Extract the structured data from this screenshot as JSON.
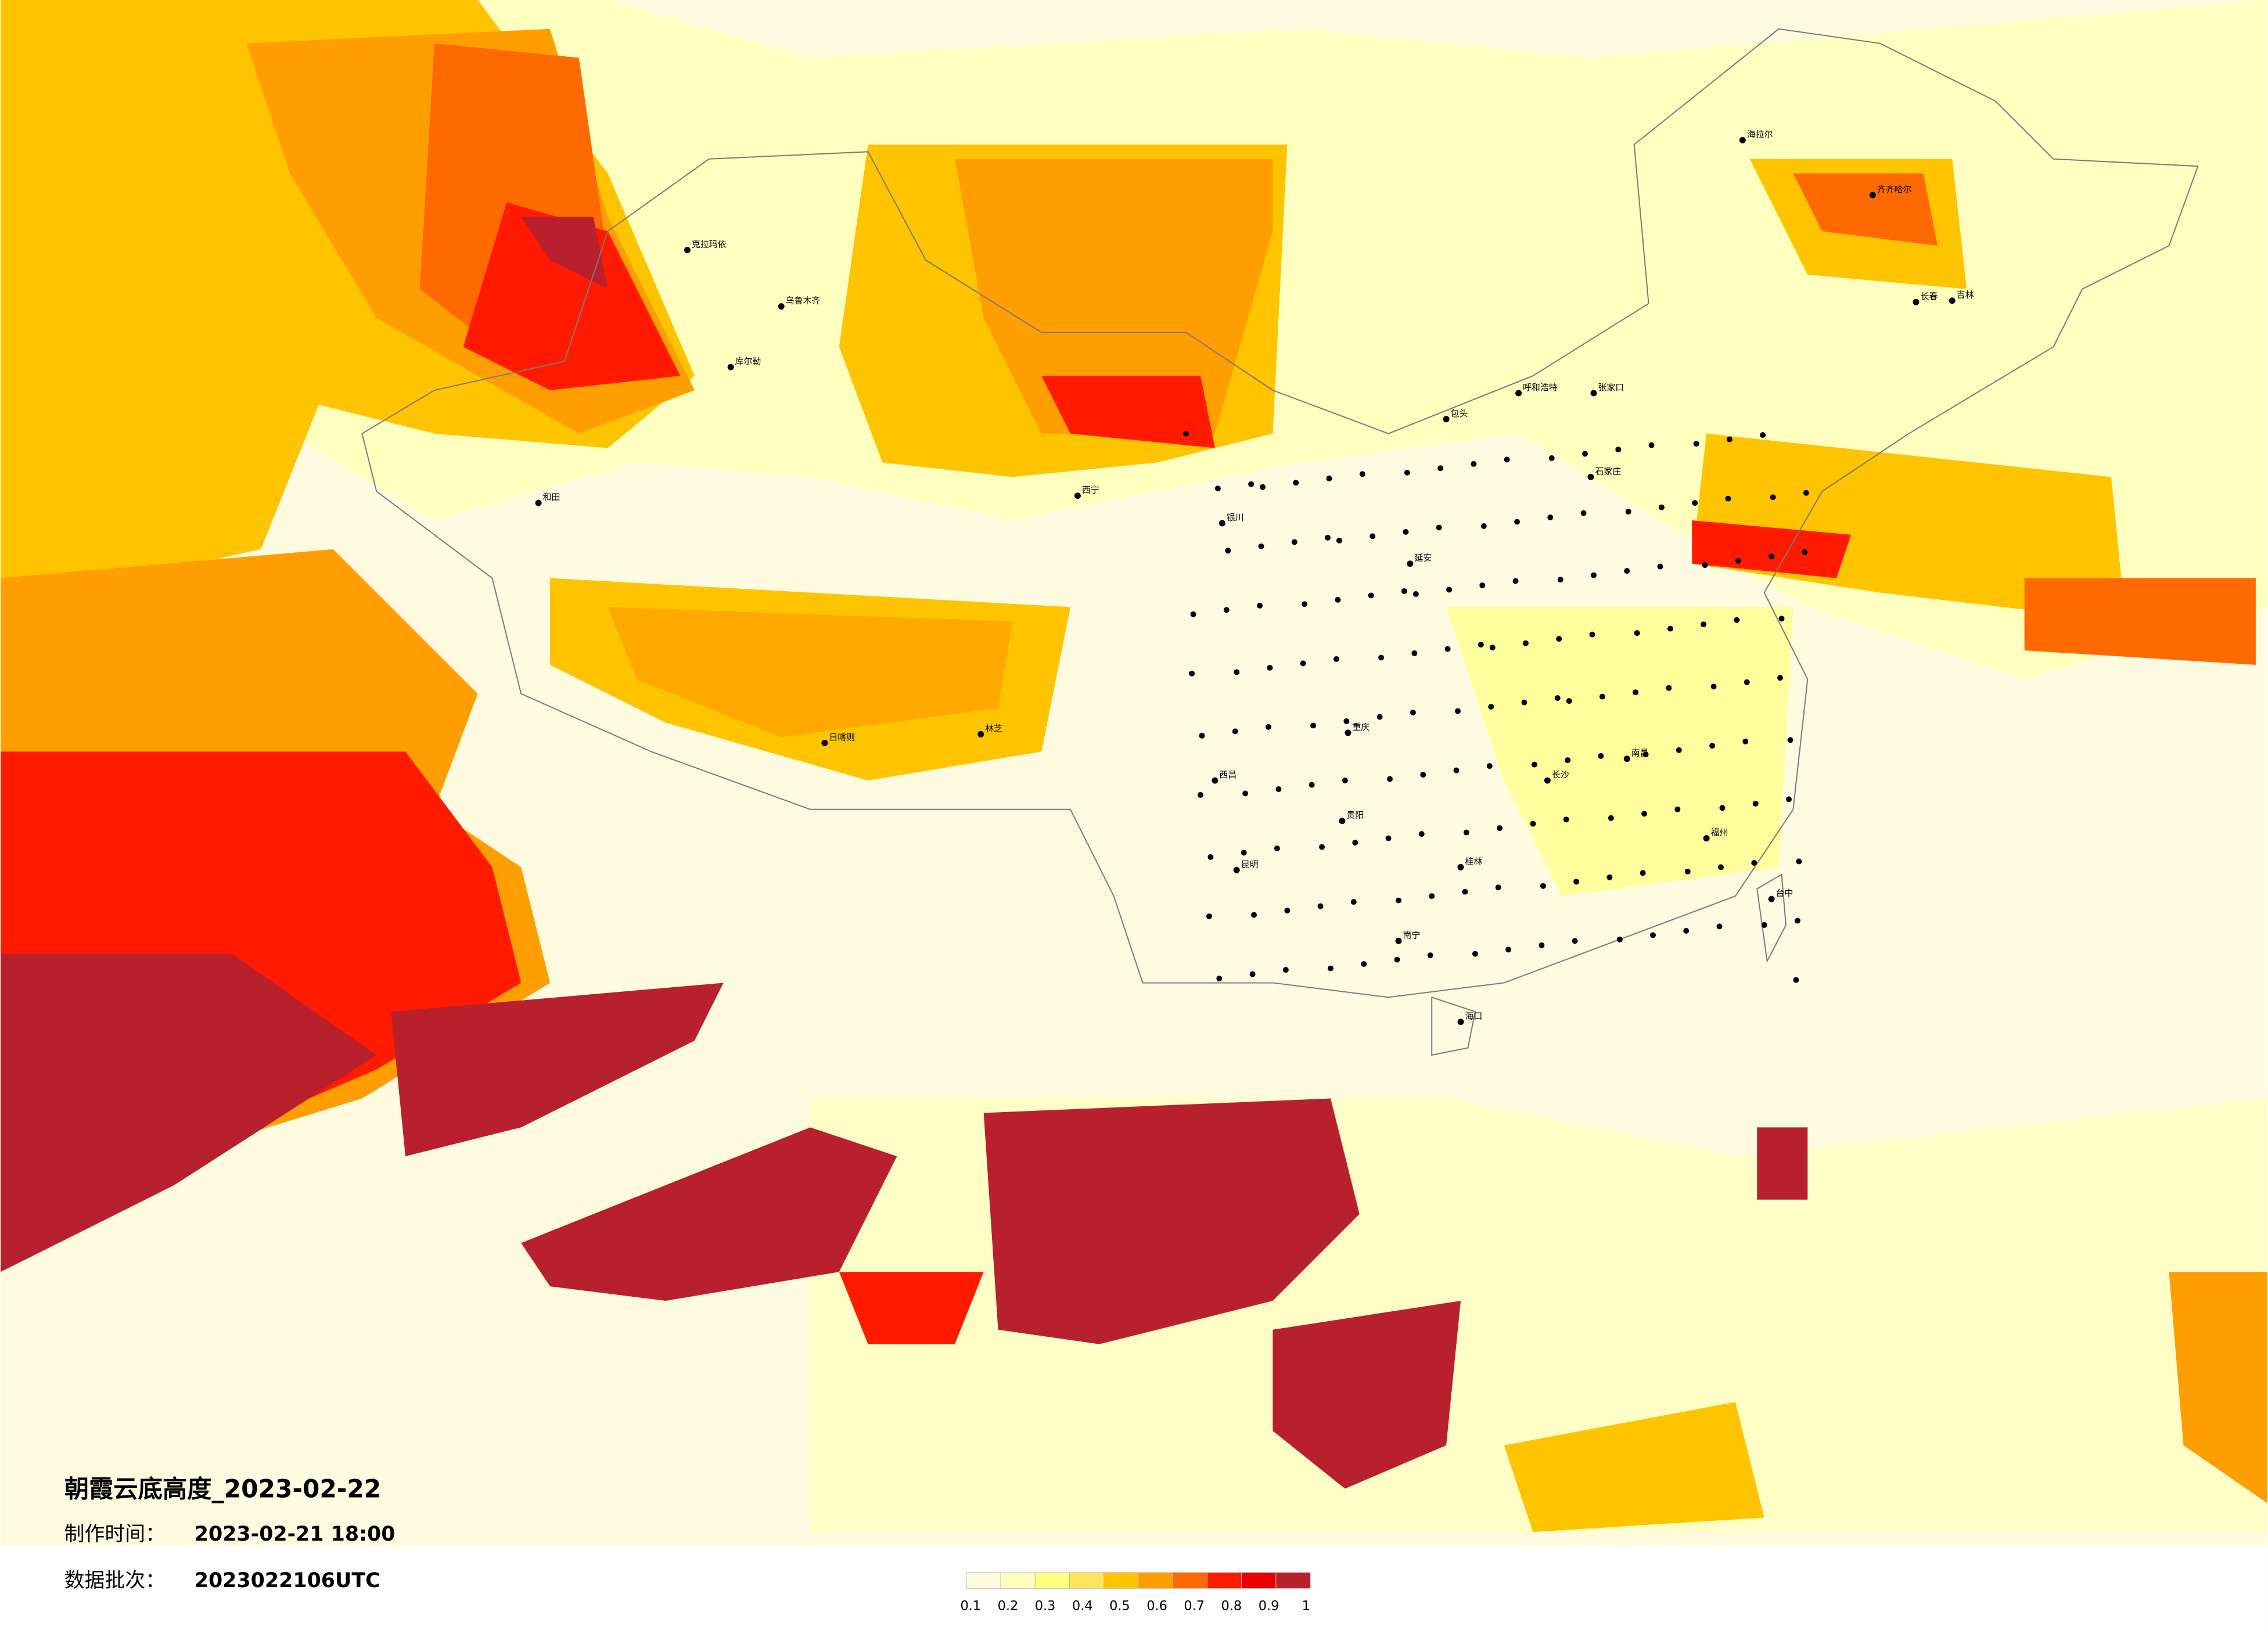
{
  "title": "朝霞云底高度_2023-02-22",
  "made_label": "制作时间：",
  "made_time": "2023-02-21 18:00",
  "batch_label": "数据批次：",
  "batch": "2023022106UTC",
  "colorbar": {
    "colors": [
      "#fffbe0",
      "#ffffbf",
      "#ffff80",
      "#ffe45c",
      "#ffc400",
      "#ff9e00",
      "#ff6a00",
      "#ff1a00",
      "#e60000",
      "#b8202e"
    ],
    "labels": [
      0.1,
      0.2,
      0.3,
      0.4,
      0.5,
      0.6,
      0.7,
      0.8,
      0.9,
      1
    ]
  },
  "cities": [
    "克拉玛依",
    "乌鲁木齐",
    "库尔勒",
    "和田",
    "日喀则",
    "林芝",
    "西宁",
    "呼和浩特",
    "石家庄",
    "海拉尔",
    "齐齐哈尔",
    "长春",
    "吉林",
    "台中",
    "海口",
    "南宁",
    "昆明",
    "贵阳",
    "重庆",
    "银川",
    "包头",
    "张家口",
    "西昌",
    "长沙",
    "南昌",
    "福州",
    "桂林",
    "延安"
  ]
}
